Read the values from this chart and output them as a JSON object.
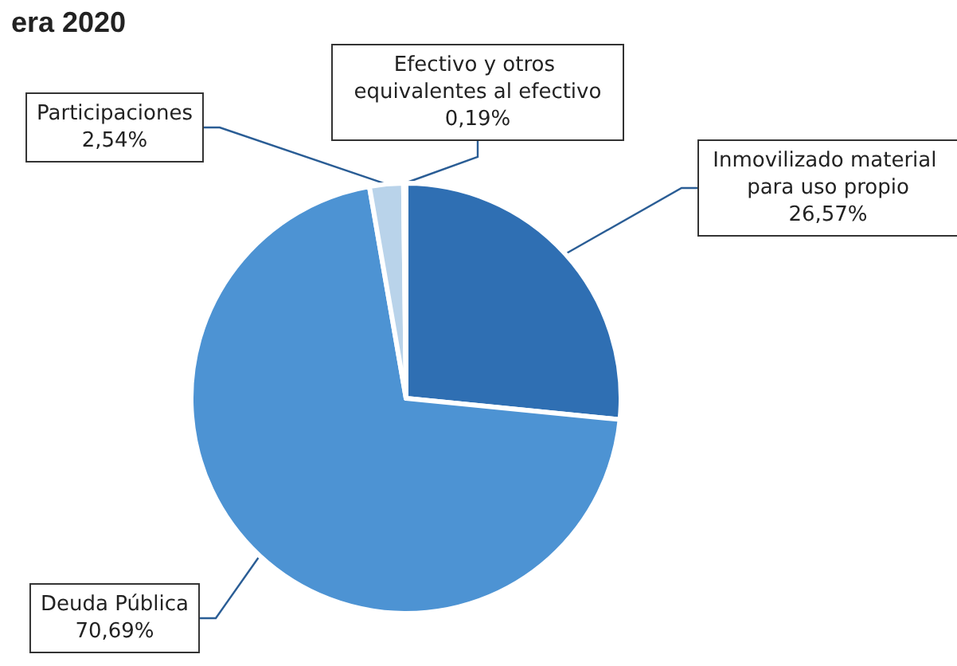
{
  "chart_data": {
    "type": "pie",
    "title": "era 2020",
    "categories": [
      "Inmovilizado material para uso propio",
      "Deuda Pública",
      "Participaciones",
      "Efectivo y otros equivalentes al efectivo"
    ],
    "values": [
      26.57,
      70.69,
      2.54,
      0.19
    ],
    "value_labels": [
      "26,57%",
      "70,69%",
      "2,54%",
      "0,19%"
    ],
    "colors": [
      "#2f6fb3",
      "#4d93d3",
      "#b9d3ea",
      "#3a7fc4"
    ],
    "legend": false
  }
}
